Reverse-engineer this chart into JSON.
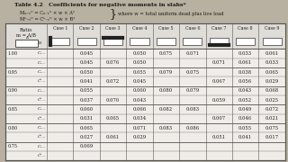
{
  "title": "Table 4.2   Coefficients for negative moments in slabs*",
  "formula1": "Ma neg = Ca neg × w × A²",
  "formula2": "Mb neg = Cb neg × w × B²",
  "formula_note": "where w = total uniform dead plus live load",
  "col_headers": [
    "Case 1",
    "Case 2",
    "Case 3",
    "Case 4",
    "Case 5",
    "Case 6",
    "Case 7",
    "Case 8",
    "Case 9"
  ],
  "rows": [
    {
      "m": "1.00",
      "sub": "Ca ...",
      "values": [
        "",
        "0.045",
        "",
        "0.050",
        "0.075",
        "0.071",
        "",
        "0.033",
        "0.061"
      ]
    },
    {
      "m": "",
      "sub": "Ca ...",
      "values": [
        "",
        "0.045",
        "0.076",
        "0.050",
        "",
        "",
        "0.071",
        "0.061",
        "0.033"
      ]
    },
    {
      "m": "0.95",
      "sub": "Ca ...",
      "values": [
        "",
        "0.050",
        "",
        "0.055",
        "0.079",
        "0.075",
        "",
        "0.038",
        "0.065"
      ]
    },
    {
      "m": "",
      "sub": "Cb ...",
      "values": [
        "",
        "0.041",
        "0.072",
        "0.045",
        "",
        "",
        "0.067",
        "0.056",
        "0.029"
      ]
    },
    {
      "m": "0.90",
      "sub": "Ca ...",
      "values": [
        "",
        "0.055",
        "",
        "0.060",
        "0.080",
        "0.079",
        "",
        "0.043",
        "0.068"
      ]
    },
    {
      "m": "",
      "sub": "Cb ...",
      "values": [
        "",
        "0.037",
        "0.070",
        "0.043",
        "",
        "",
        "0.059",
        "0.052",
        "0.025"
      ]
    },
    {
      "m": "0.85",
      "sub": "Ca ...",
      "values": [
        "",
        "0.060",
        "",
        "0.066",
        "0.082",
        "0.083",
        "",
        "0.049",
        "0.072"
      ]
    },
    {
      "m": "",
      "sub": "Cb ...",
      "values": [
        "",
        "0.031",
        "0.065",
        "0.034",
        "",
        "",
        "0.007",
        "0.046",
        "0.021"
      ]
    },
    {
      "m": "0.80",
      "sub": "Ca ...",
      "values": [
        "",
        "0.065",
        "",
        "0.071",
        "0.083",
        "0.086",
        "",
        "0.055",
        "0.075"
      ]
    },
    {
      "m": "",
      "sub": "Cb ...",
      "values": [
        "",
        "0.027",
        "0.061",
        "0.029",
        "",
        "",
        "0.051",
        "0.041",
        "0.017"
      ]
    },
    {
      "m": "0.75",
      "sub": "Ca ...",
      "values": [
        "",
        "0.069",
        "",
        "",
        "",
        "",
        "",
        "",
        ""
      ]
    },
    {
      "m": "",
      "sub": "Cb ...",
      "values": [
        "",
        "",
        "",
        "",
        "",
        "",
        "",
        "",
        ""
      ]
    }
  ],
  "bg_color": "#b8b0a0",
  "table_bg": "#f0ede8",
  "header_bg": "#e0ddd8",
  "text_color": "#1a1a1a",
  "line_color": "#555555"
}
